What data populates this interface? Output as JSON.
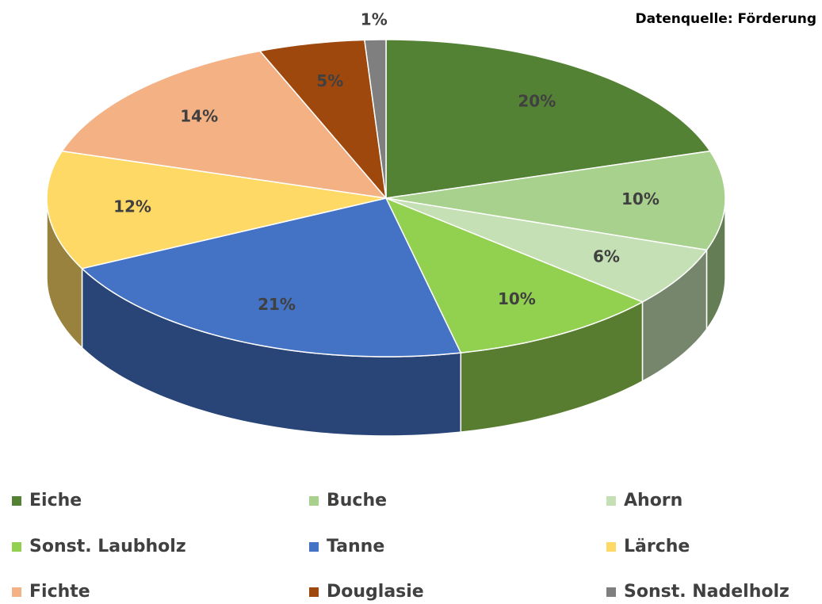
{
  "chart_data": {
    "type": "pie3d",
    "source": "Datenquelle: Förderung",
    "categories": [
      "Eiche",
      "Buche",
      "Ahorn",
      "Sonst. Laubholz",
      "Tanne",
      "Lärche",
      "Fichte",
      "Douglasie",
      "Sonst. Nadelholz"
    ],
    "values": [
      20,
      10,
      6,
      10,
      21,
      12,
      14,
      5,
      1
    ],
    "value_labels": [
      "20%",
      "10%",
      "6%",
      "10%",
      "21%",
      "12%",
      "14%",
      "5%",
      "1%"
    ],
    "colors": [
      "#548235",
      "#a9d18e",
      "#c5e0b4",
      "#92d050",
      "#4472c4",
      "#ffd966",
      "#f4b183",
      "#9e480e",
      "#7f7f7f"
    ],
    "legend": "bottom"
  }
}
